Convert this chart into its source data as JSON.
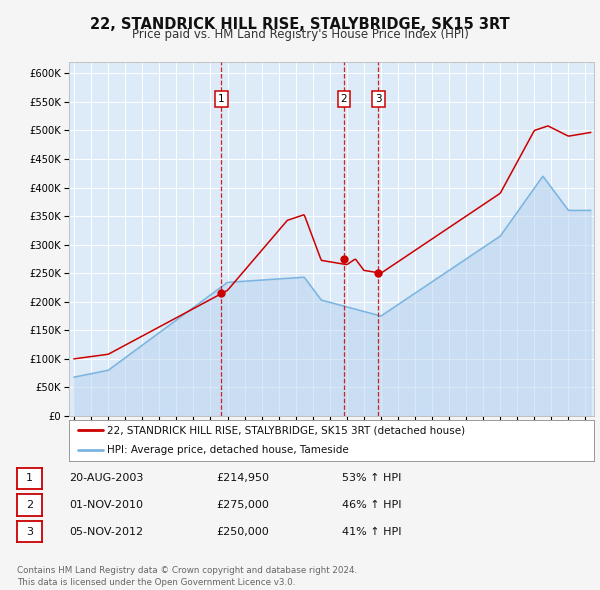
{
  "title": "22, STANDRICK HILL RISE, STALYBRIDGE, SK15 3RT",
  "subtitle": "Price paid vs. HM Land Registry's House Price Index (HPI)",
  "title_fontsize": 10.5,
  "subtitle_fontsize": 8.5,
  "background_color": "#f5f5f5",
  "plot_background_color": "#ddeaf7",
  "grid_color": "#ffffff",
  "hpi_line_color": "#7ab4e0",
  "hpi_fill_color": "#b8d4f0",
  "price_line_color": "#cc0000",
  "sale_dot_color": "#cc0000",
  "yticks": [
    0,
    50000,
    100000,
    150000,
    200000,
    250000,
    300000,
    350000,
    400000,
    450000,
    500000,
    550000,
    600000
  ],
  "ytick_labels": [
    "£0",
    "£50K",
    "£100K",
    "£150K",
    "£200K",
    "£250K",
    "£300K",
    "£350K",
    "£400K",
    "£450K",
    "£500K",
    "£550K",
    "£600K"
  ],
  "xmin": 1994.7,
  "xmax": 2025.5,
  "ymin": 0,
  "ymax": 620000,
  "sale_events": [
    {
      "label": "1",
      "date_num": 2003.635,
      "price": 214950
    },
    {
      "label": "2",
      "date_num": 2010.835,
      "price": 275000
    },
    {
      "label": "3",
      "date_num": 2012.845,
      "price": 250000
    }
  ],
  "sale_vline_color": "#cc0000",
  "legend_label_price": "22, STANDRICK HILL RISE, STALYBRIDGE, SK15 3RT (detached house)",
  "legend_label_hpi": "HPI: Average price, detached house, Tameside",
  "legend_color_price": "#cc0000",
  "legend_color_hpi": "#7ab4e0",
  "table_rows": [
    {
      "num": "1",
      "date": "20-AUG-2003",
      "price": "£214,950",
      "pct": "53% ↑ HPI"
    },
    {
      "num": "2",
      "date": "01-NOV-2010",
      "price": "£275,000",
      "pct": "46% ↑ HPI"
    },
    {
      "num": "3",
      "date": "05-NOV-2012",
      "price": "£250,000",
      "pct": "41% ↑ HPI"
    }
  ],
  "footer": "Contains HM Land Registry data © Crown copyright and database right 2024.\nThis data is licensed under the Open Government Licence v3.0."
}
